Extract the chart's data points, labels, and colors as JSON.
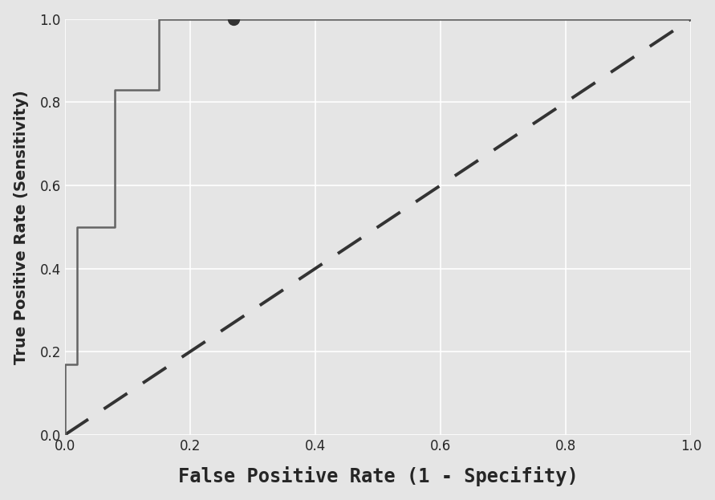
{
  "roc_fpr": [
    0.0,
    0.0,
    0.02,
    0.02,
    0.08,
    0.08,
    0.15,
    0.15,
    0.27,
    0.27,
    1.0
  ],
  "roc_tpr": [
    0.0,
    0.17,
    0.17,
    0.5,
    0.5,
    0.83,
    0.83,
    1.0,
    1.0,
    1.0,
    1.0
  ],
  "optimal_point": [
    0.27,
    1.0
  ],
  "diagonal_fpr": [
    0.0,
    1.0
  ],
  "diagonal_tpr": [
    0.0,
    1.0
  ],
  "roc_color": "#646464",
  "diagonal_color": "#333333",
  "optimal_color": "#333333",
  "background_color": "#e5e5e5",
  "fig_facecolor": "#e5e5e5",
  "xlabel": "False Positive Rate (1 - Specifity)",
  "ylabel": "True Positive Rate (Sensitivity)",
  "xlim": [
    0.0,
    1.0
  ],
  "ylim": [
    0.0,
    1.0
  ],
  "xlabel_fontsize": 17,
  "ylabel_fontsize": 14,
  "tick_fontsize": 12,
  "roc_linewidth": 1.8,
  "diagonal_linewidth": 2.8,
  "optimal_markersize": 10,
  "grid_color": "#ffffff",
  "grid_linewidth": 1.2
}
